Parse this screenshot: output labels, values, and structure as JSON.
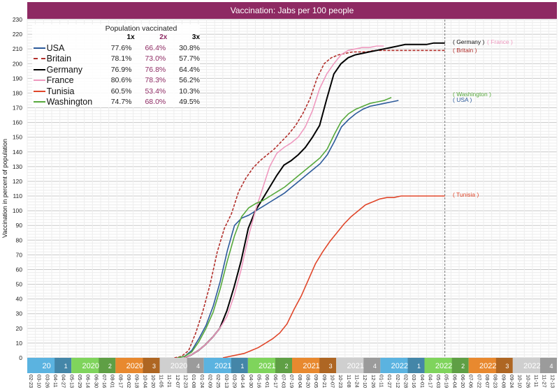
{
  "title": "Vaccination: Jabs per 100 people",
  "chart_data": {
    "type": "line",
    "title": "Vaccination: Jabs per 100 people",
    "ylabel": "Vaccination in percent of population",
    "ylim": [
      0,
      230
    ],
    "grid": true,
    "y_ticks": [
      0,
      10,
      20,
      30,
      40,
      50,
      60,
      70,
      80,
      90,
      100,
      110,
      120,
      130,
      140,
      150,
      160,
      170,
      180,
      190,
      200,
      210,
      220,
      230
    ],
    "x_range": [
      "2020-02-23",
      "2022-12-29"
    ],
    "x_tick_labels": [
      "02-23",
      "03-10",
      "03-26",
      "04-11",
      "04-27",
      "05-13",
      "05-29",
      "06-14",
      "06-30",
      "07-16",
      "08-01",
      "08-17",
      "09-02",
      "09-18",
      "10-04",
      "10-20",
      "11-05",
      "11-21",
      "12-07",
      "12-23",
      "01-08",
      "01-24",
      "02-09",
      "02-25",
      "03-13",
      "03-29",
      "04-14",
      "04-30",
      "05-16",
      "06-01",
      "06-17",
      "07-03",
      "07-19",
      "08-04",
      "08-20",
      "09-05",
      "09-21",
      "10-07",
      "10-23",
      "11-08",
      "11-24",
      "12-10",
      "12-26",
      "01-11",
      "01-27",
      "02-12",
      "02-28",
      "03-16",
      "04-01",
      "04-17",
      "05-03",
      "05-19",
      "06-04",
      "06-20",
      "07-06",
      "07-22",
      "08-07",
      "08-23",
      "09-08",
      "09-24",
      "10-10",
      "10-26",
      "11-11",
      "11-27",
      "12-13",
      "12-29"
    ],
    "quarter_labels": [
      {
        "label": "20",
        "q": "1",
        "color": "#5bb3e0"
      },
      {
        "label": "2020",
        "q": "2",
        "color": "#7fd45c"
      },
      {
        "label": "2020",
        "q": "3",
        "color": "#e8892f"
      },
      {
        "label": "2020",
        "q": "4",
        "color": "#cfcfcf"
      },
      {
        "label": "2021",
        "q": "1",
        "color": "#5bb3e0"
      },
      {
        "label": "2021",
        "q": "2",
        "color": "#7fd45c"
      },
      {
        "label": "2021",
        "q": "3",
        "color": "#e8892f"
      },
      {
        "label": "2021",
        "q": "4",
        "color": "#cfcfcf"
      },
      {
        "label": "2022",
        "q": "1",
        "color": "#5bb3e0"
      },
      {
        "label": "2022",
        "q": "2",
        "color": "#7fd45c"
      },
      {
        "label": "2022",
        "q": "3",
        "color": "#e8892f"
      },
      {
        "label": "2022",
        "q": "4",
        "color": "#cfcfcf"
      }
    ],
    "marker_date": "2022-05-23",
    "legend_title": "Population vaccinated",
    "legend_columns": [
      "1x",
      "2x",
      "3x"
    ],
    "series": [
      {
        "name": "USA",
        "color": "#2c5a9a",
        "dashed": false,
        "dose1": "77.6%",
        "dose2": "66.4%",
        "dose3": "30.8%",
        "end_label": "( USA )",
        "points": [
          [
            "2020-12-14",
            0
          ],
          [
            "2020-12-28",
            1
          ],
          [
            "2021-01-11",
            5
          ],
          [
            "2021-01-25",
            13
          ],
          [
            "2021-02-08",
            22
          ],
          [
            "2021-02-22",
            35
          ],
          [
            "2021-03-08",
            52
          ],
          [
            "2021-03-22",
            73
          ],
          [
            "2021-04-05",
            90
          ],
          [
            "2021-04-19",
            95
          ],
          [
            "2021-05-03",
            97
          ],
          [
            "2021-05-17",
            100
          ],
          [
            "2021-05-31",
            103
          ],
          [
            "2021-06-14",
            106
          ],
          [
            "2021-06-28",
            109
          ],
          [
            "2021-07-12",
            112
          ],
          [
            "2021-07-26",
            116
          ],
          [
            "2021-08-09",
            120
          ],
          [
            "2021-08-23",
            124
          ],
          [
            "2021-09-06",
            128
          ],
          [
            "2021-09-20",
            132
          ],
          [
            "2021-10-04",
            138
          ],
          [
            "2021-10-18",
            147
          ],
          [
            "2021-11-01",
            157
          ],
          [
            "2021-11-15",
            162
          ],
          [
            "2021-11-29",
            166
          ],
          [
            "2021-12-13",
            169
          ],
          [
            "2021-12-27",
            171
          ],
          [
            "2022-01-10",
            172
          ],
          [
            "2022-01-24",
            173
          ],
          [
            "2022-02-07",
            174
          ],
          [
            "2022-02-21",
            175
          ]
        ]
      },
      {
        "name": "Britain",
        "color": "#b2302c",
        "dashed": true,
        "dose1": "78.1%",
        "dose2": "73.0%",
        "dose3": "57.7%",
        "end_label": "( Britain )",
        "points": [
          [
            "2020-12-08",
            0
          ],
          [
            "2020-12-22",
            1
          ],
          [
            "2021-01-05",
            5
          ],
          [
            "2021-01-19",
            17
          ],
          [
            "2021-02-02",
            32
          ],
          [
            "2021-02-16",
            50
          ],
          [
            "2021-03-02",
            72
          ],
          [
            "2021-03-16",
            88
          ],
          [
            "2021-03-30",
            98
          ],
          [
            "2021-04-13",
            113
          ],
          [
            "2021-04-27",
            122
          ],
          [
            "2021-05-11",
            129
          ],
          [
            "2021-05-25",
            134
          ],
          [
            "2021-06-08",
            138
          ],
          [
            "2021-06-22",
            142
          ],
          [
            "2021-07-06",
            147
          ],
          [
            "2021-07-20",
            152
          ],
          [
            "2021-08-03",
            158
          ],
          [
            "2021-08-17",
            166
          ],
          [
            "2021-08-31",
            176
          ],
          [
            "2021-09-14",
            190
          ],
          [
            "2021-09-28",
            200
          ],
          [
            "2021-10-12",
            204
          ],
          [
            "2021-10-26",
            206
          ],
          [
            "2021-11-09",
            207
          ],
          [
            "2021-11-23",
            208
          ],
          [
            "2021-12-07",
            208
          ],
          [
            "2021-12-21",
            208
          ],
          [
            "2022-01-04",
            209
          ],
          [
            "2022-01-18",
            209
          ],
          [
            "2022-02-01",
            209
          ],
          [
            "2022-02-15",
            209
          ],
          [
            "2022-03-01",
            209
          ],
          [
            "2022-03-15",
            209
          ],
          [
            "2022-03-29",
            209
          ],
          [
            "2022-04-12",
            209
          ],
          [
            "2022-04-26",
            209
          ],
          [
            "2022-05-10",
            209
          ],
          [
            "2022-05-23",
            209
          ]
        ]
      },
      {
        "name": "Germany",
        "color": "#000000",
        "dashed": false,
        "dose1": "76.9%",
        "dose2": "76.8%",
        "dose3": "64.4%",
        "end_label": "( Germany )",
        "points": [
          [
            "2020-12-27",
            0
          ],
          [
            "2021-01-10",
            2
          ],
          [
            "2021-01-24",
            5
          ],
          [
            "2021-02-07",
            9
          ],
          [
            "2021-02-21",
            14
          ],
          [
            "2021-03-07",
            20
          ],
          [
            "2021-03-21",
            32
          ],
          [
            "2021-04-04",
            48
          ],
          [
            "2021-04-18",
            66
          ],
          [
            "2021-05-02",
            88
          ],
          [
            "2021-05-16",
            100
          ],
          [
            "2021-05-30",
            108
          ],
          [
            "2021-06-13",
            116
          ],
          [
            "2021-06-27",
            124
          ],
          [
            "2021-07-11",
            131
          ],
          [
            "2021-07-25",
            134
          ],
          [
            "2021-08-08",
            138
          ],
          [
            "2021-08-22",
            143
          ],
          [
            "2021-09-05",
            150
          ],
          [
            "2021-09-19",
            158
          ],
          [
            "2021-10-03",
            176
          ],
          [
            "2021-10-17",
            193
          ],
          [
            "2021-10-31",
            200
          ],
          [
            "2021-11-14",
            204
          ],
          [
            "2021-11-28",
            206
          ],
          [
            "2021-12-12",
            207
          ],
          [
            "2021-12-26",
            208
          ],
          [
            "2022-01-09",
            209
          ],
          [
            "2022-01-23",
            210
          ],
          [
            "2022-02-06",
            211
          ],
          [
            "2022-02-20",
            212
          ],
          [
            "2022-03-06",
            213
          ],
          [
            "2022-03-20",
            213
          ],
          [
            "2022-04-03",
            213
          ],
          [
            "2022-04-17",
            213
          ],
          [
            "2022-05-01",
            214
          ],
          [
            "2022-05-15",
            214
          ],
          [
            "2022-05-23",
            214
          ]
        ]
      },
      {
        "name": "France",
        "color": "#ef99bf",
        "dashed": false,
        "dose1": "80.6%",
        "dose2": "78.3%",
        "dose3": "56.2%",
        "end_label": "( France )",
        "points": [
          [
            "2020-12-27",
            0
          ],
          [
            "2021-01-10",
            2
          ],
          [
            "2021-01-24",
            5
          ],
          [
            "2021-02-07",
            9
          ],
          [
            "2021-02-21",
            14
          ],
          [
            "2021-03-07",
            20
          ],
          [
            "2021-03-21",
            28
          ],
          [
            "2021-04-04",
            42
          ],
          [
            "2021-04-18",
            60
          ],
          [
            "2021-05-02",
            82
          ],
          [
            "2021-05-16",
            100
          ],
          [
            "2021-05-30",
            115
          ],
          [
            "2021-06-13",
            130
          ],
          [
            "2021-06-27",
            139
          ],
          [
            "2021-07-11",
            143
          ],
          [
            "2021-07-25",
            146
          ],
          [
            "2021-08-08",
            150
          ],
          [
            "2021-08-22",
            157
          ],
          [
            "2021-09-05",
            168
          ],
          [
            "2021-09-19",
            183
          ],
          [
            "2021-10-03",
            193
          ],
          [
            "2021-10-17",
            200
          ],
          [
            "2021-10-31",
            206
          ],
          [
            "2021-11-14",
            209
          ],
          [
            "2021-11-28",
            210
          ],
          [
            "2021-12-12",
            211
          ],
          [
            "2021-12-26",
            211
          ],
          [
            "2022-01-09",
            212
          ],
          [
            "2022-01-23",
            212
          ]
        ]
      },
      {
        "name": "Tunisia",
        "color": "#e0462a",
        "dashed": false,
        "dose1": "60.5%",
        "dose2": "53.4%",
        "dose3": "10.3%",
        "end_label": "( Tunisia )",
        "points": [
          [
            "2021-03-13",
            0
          ],
          [
            "2021-03-27",
            1
          ],
          [
            "2021-04-10",
            2
          ],
          [
            "2021-04-24",
            3
          ],
          [
            "2021-05-08",
            5
          ],
          [
            "2021-05-22",
            7
          ],
          [
            "2021-06-05",
            10
          ],
          [
            "2021-06-19",
            13
          ],
          [
            "2021-07-03",
            17
          ],
          [
            "2021-07-17",
            23
          ],
          [
            "2021-07-31",
            33
          ],
          [
            "2021-08-14",
            42
          ],
          [
            "2021-08-28",
            53
          ],
          [
            "2021-09-11",
            64
          ],
          [
            "2021-09-25",
            72
          ],
          [
            "2021-10-09",
            79
          ],
          [
            "2021-10-23",
            85
          ],
          [
            "2021-11-06",
            91
          ],
          [
            "2021-11-20",
            96
          ],
          [
            "2021-12-04",
            100
          ],
          [
            "2021-12-18",
            104
          ],
          [
            "2022-01-01",
            106
          ],
          [
            "2022-01-15",
            108
          ],
          [
            "2022-01-29",
            109
          ],
          [
            "2022-02-12",
            109
          ],
          [
            "2022-02-26",
            110
          ],
          [
            "2022-03-12",
            110
          ],
          [
            "2022-03-26",
            110
          ],
          [
            "2022-04-09",
            110
          ],
          [
            "2022-04-23",
            110
          ],
          [
            "2022-05-07",
            110
          ],
          [
            "2022-05-23",
            110
          ]
        ]
      },
      {
        "name": "Washington",
        "color": "#56a83b",
        "dashed": false,
        "dose1": "74.7%",
        "dose2": "68.0%",
        "dose3": "49.5%",
        "end_label": "( Washington )",
        "points": [
          [
            "2020-12-14",
            0
          ],
          [
            "2020-12-28",
            1
          ],
          [
            "2021-01-11",
            4
          ],
          [
            "2021-01-25",
            11
          ],
          [
            "2021-02-08",
            20
          ],
          [
            "2021-02-22",
            31
          ],
          [
            "2021-03-08",
            47
          ],
          [
            "2021-03-22",
            66
          ],
          [
            "2021-04-05",
            83
          ],
          [
            "2021-04-19",
            96
          ],
          [
            "2021-05-03",
            102
          ],
          [
            "2021-05-17",
            105
          ],
          [
            "2021-05-31",
            107
          ],
          [
            "2021-06-14",
            110
          ],
          [
            "2021-06-28",
            113
          ],
          [
            "2021-07-12",
            116
          ],
          [
            "2021-07-26",
            120
          ],
          [
            "2021-08-09",
            124
          ],
          [
            "2021-08-23",
            128
          ],
          [
            "2021-09-06",
            132
          ],
          [
            "2021-09-20",
            136
          ],
          [
            "2021-10-04",
            142
          ],
          [
            "2021-10-18",
            152
          ],
          [
            "2021-11-01",
            161
          ],
          [
            "2021-11-15",
            166
          ],
          [
            "2021-11-29",
            169
          ],
          [
            "2021-12-13",
            171
          ],
          [
            "2021-12-27",
            173
          ],
          [
            "2022-01-10",
            174
          ],
          [
            "2022-01-24",
            175
          ],
          [
            "2022-02-07",
            177
          ]
        ]
      }
    ]
  }
}
